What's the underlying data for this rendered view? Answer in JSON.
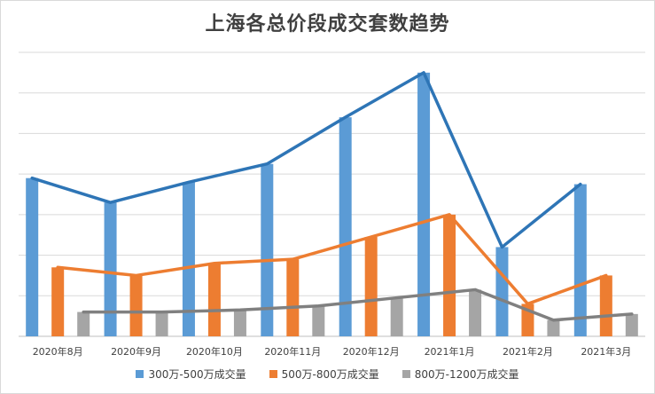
{
  "chart_data": {
    "type": "bar",
    "title": "上海各总价段成交套数趋势",
    "categories": [
      "2020年8月",
      "2020年9月",
      "2020年10月",
      "2020年11月",
      "2020年12月",
      "2021年1月",
      "2021年2月",
      "2021年3月"
    ],
    "series": [
      {
        "name": "300万-500万成交量",
        "color": "#5b9bd5",
        "line_color": "#2e75b6",
        "values": [
          3.9,
          3.3,
          3.8,
          4.25,
          5.4,
          6.5,
          2.2,
          3.75
        ]
      },
      {
        "name": "500万-800万成交量",
        "color": "#ed7d31",
        "line_color": "#ed7d31",
        "values": [
          1.7,
          1.5,
          1.8,
          1.9,
          2.45,
          3.0,
          0.8,
          1.5
        ]
      },
      {
        "name": "800万-1200万成交量",
        "color": "#a5a5a5",
        "line_color": "#808080",
        "values": [
          0.6,
          0.6,
          0.65,
          0.75,
          0.95,
          1.15,
          0.4,
          0.55
        ]
      }
    ],
    "ylim": [
      0,
      7
    ],
    "grid": true,
    "ytick_labels_shown": false,
    "legend_position": "bottom",
    "overlay_lines": true
  }
}
